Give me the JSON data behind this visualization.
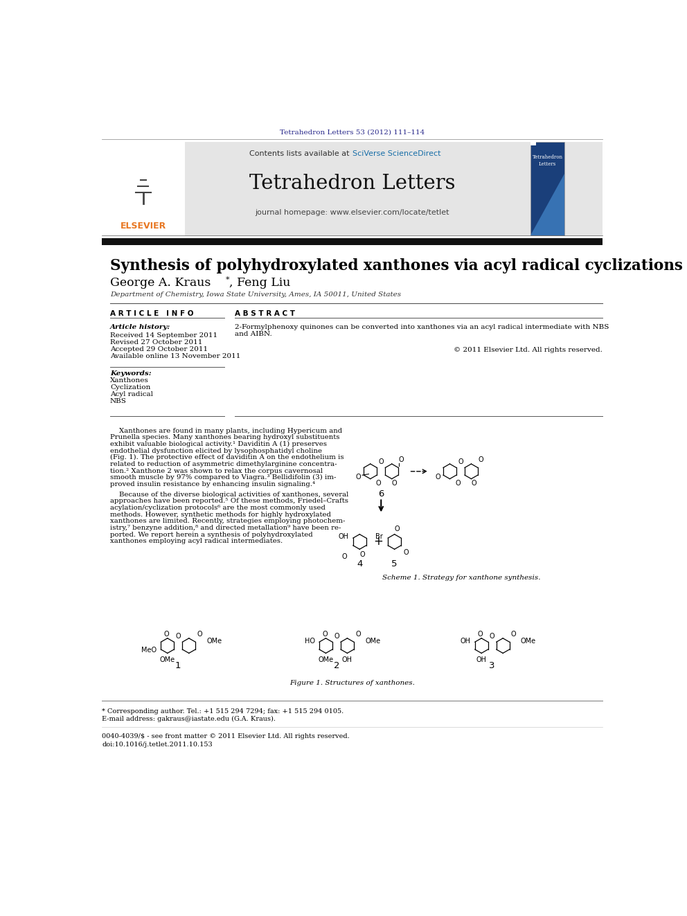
{
  "page_title": "Tetrahedron Letters 53 (2012) 111–114",
  "journal_name": "Tetrahedron Letters",
  "journal_subtitle": "journal homepage: www.elsevier.com/locate/tetlet",
  "contents_line_plain": "Contents lists available at ",
  "contents_line_link": "SciVerse ScienceDirect",
  "article_title": "Synthesis of polyhydroxylated xanthones via acyl radical cyclizations",
  "author1": "George A. Kraus ",
  "author2": ", Feng Liu",
  "affiliation": "Department of Chemistry, Iowa State University, Ames, IA 50011, United States",
  "article_info_label": "A R T I C L E   I N F O",
  "abstract_label": "A B S T R A C T",
  "article_history_label": "Article history:",
  "received": "Received 14 September 2011",
  "revised": "Revised 27 October 2011",
  "accepted": "Accepted 29 October 2011",
  "available": "Available online 13 November 2011",
  "keywords_label": "Keywords:",
  "keywords": [
    "Xanthones",
    "Cyclization",
    "Acyl radical",
    "NBS"
  ],
  "abstract_text_1": "2-Formylphenoxy quinones can be converted into xanthones via an acyl radical intermediate with NBS",
  "abstract_text_2": "and AIBN.",
  "copyright": "© 2011 Elsevier Ltd. All rights reserved.",
  "body1_lines": [
    "    Xanthones are found in many plants, including Hypericum and",
    "Prunella species. Many xanthones bearing hydroxyl substituents",
    "exhibit valuable biological activity.¹ Daviditin A (1) preserves",
    "endothelial dysfunction elicited by lysophosphatidyl choline",
    "(Fig. 1). The protective effect of daviditin A on the endothelium is",
    "related to reduction of asymmetric dimethylarginine concentra-",
    "tion.² Xanthone 2 was shown to relax the corpus cavernosal",
    "smooth muscle by 97% compared to Viagra.³ Bellidifolin (3) im-",
    "proved insulin resistance by enhancing insulin signaling.⁴"
  ],
  "body2_lines": [
    "    Because of the diverse biological activities of xanthones, several",
    "approaches have been reported.⁵ Of these methods, Friedel–Crafts",
    "acylation/cyclization protocols⁶ are the most commonly used",
    "methods. However, synthetic methods for highly hydroxylated",
    "xanthones are limited. Recently, strategies employing photochem-",
    "istry,⁷ benzyne addition,⁸ and directed metallation⁹ have been re-",
    "ported. We report herein a synthesis of polyhydroxylated",
    "xanthones employing acyl radical intermediates."
  ],
  "scheme_caption": "Scheme 1. Strategy for xanthone synthesis.",
  "figure_caption": "Figure 1. Structures of xanthones.",
  "footnote_star": "* Corresponding author. Tel.: +1 515 294 7294; fax: +1 515 294 0105.",
  "footnote_email": "E-mail address: gakraus@iastate.edu (G.A. Kraus).",
  "footnote_issn": "0040-4039/$ - see front matter © 2011 Elsevier Ltd. All rights reserved.",
  "footnote_doi": "doi:10.1016/j.tetlet.2011.10.153",
  "bg_color": "#ffffff",
  "header_bg": "#e5e5e5",
  "title_color_blue": "#2b2b8c",
  "link_color": "#1a6fa8",
  "elsevier_orange": "#e87722",
  "text_color": "#000000"
}
